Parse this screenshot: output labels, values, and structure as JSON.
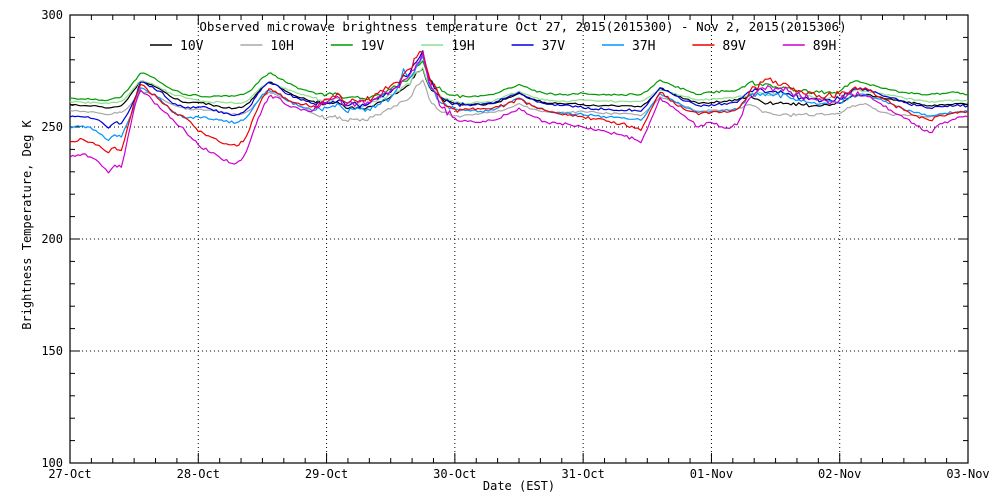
{
  "chart_data": {
    "type": "line",
    "title": "Observed microwave brightness temperature Oct 27, 2015(2015300) - Nov  2, 2015(2015306)",
    "xlabel": "Date (EST)",
    "ylabel": "Brightness Temperature, Deg K",
    "x_unit": "days since 27-Oct-2015 00:00 EST",
    "xlim": [
      0,
      7
    ],
    "ylim": [
      100,
      300
    ],
    "yticks": [
      100,
      150,
      200,
      250,
      300
    ],
    "ygrid": [
      150,
      200,
      250
    ],
    "xgrid": [
      1,
      2,
      3,
      4,
      5,
      6
    ],
    "minor_x_per_day": 6,
    "minor_y_step": 10,
    "xticks": [
      {
        "t": 0,
        "label": "27-Oct"
      },
      {
        "t": 1,
        "label": "28-Oct"
      },
      {
        "t": 2,
        "label": "29-Oct"
      },
      {
        "t": 3,
        "label": "30-Oct"
      },
      {
        "t": 4,
        "label": "31-Oct"
      },
      {
        "t": 5,
        "label": "01-Nov"
      },
      {
        "t": 6,
        "label": "02-Nov"
      },
      {
        "t": 7,
        "label": "03-Nov"
      }
    ],
    "noise_regions": [
      [
        0,
        1.9,
        0.55
      ],
      [
        1.9,
        3.05,
        1.2
      ],
      [
        3.05,
        5.25,
        0.55
      ],
      [
        5.25,
        6.15,
        1.2
      ],
      [
        6.15,
        7.01,
        0.55
      ]
    ],
    "x": [
      0,
      0.1,
      0.2,
      0.25,
      0.3,
      0.35,
      0.4,
      0.45,
      0.5,
      0.55,
      0.6,
      0.7,
      0.8,
      0.9,
      1.0,
      1.1,
      1.2,
      1.3,
      1.35,
      1.4,
      1.45,
      1.5,
      1.55,
      1.6,
      1.7,
      1.8,
      1.9,
      1.95,
      2.0,
      2.05,
      2.1,
      2.15,
      2.2,
      2.3,
      2.4,
      2.5,
      2.55,
      2.6,
      2.65,
      2.7,
      2.75,
      2.8,
      2.9,
      3.0,
      3.1,
      3.2,
      3.3,
      3.4,
      3.5,
      3.6,
      3.7,
      3.8,
      3.9,
      4.0,
      4.1,
      4.2,
      4.3,
      4.4,
      4.45,
      4.5,
      4.55,
      4.6,
      4.7,
      4.8,
      4.9,
      5.0,
      5.1,
      5.2,
      5.3,
      5.4,
      5.5,
      5.6,
      5.7,
      5.8,
      5.9,
      6.0,
      6.1,
      6.2,
      6.3,
      6.4,
      6.5,
      6.6,
      6.7,
      6.8,
      6.9,
      7.0
    ],
    "series": [
      {
        "name": "10V",
        "color": "#000000",
        "jitter": 0.7,
        "values": [
          260,
          259.5,
          259.5,
          259,
          258.5,
          259,
          259.5,
          262.5,
          266.5,
          270.5,
          269.5,
          267,
          263,
          261,
          261,
          260,
          258.5,
          258.5,
          259,
          261,
          264.5,
          268,
          270,
          269,
          265.5,
          263,
          261.5,
          261,
          260.5,
          260.5,
          260.5,
          258.5,
          259,
          258,
          261,
          263.5,
          265,
          267,
          269,
          274.5,
          276,
          268,
          262.5,
          260.5,
          260,
          260,
          260.5,
          262.5,
          265,
          262.5,
          261,
          260.5,
          260.5,
          260,
          259.5,
          259.5,
          259.5,
          259,
          259,
          261,
          264,
          267.5,
          265,
          262.5,
          260.5,
          261,
          261.5,
          262,
          264.5,
          261,
          260.5,
          260.5,
          260,
          259.5,
          260,
          260.5,
          264,
          264.5,
          263.5,
          262.5,
          261.5,
          260.5,
          259.5,
          260,
          260.5,
          260
        ]
      },
      {
        "name": "10H",
        "color": "#a8a8a8",
        "jitter": 0.7,
        "values": [
          257.5,
          257,
          256.5,
          256,
          255.5,
          256.5,
          256.5,
          258.5,
          262,
          266,
          265.5,
          263,
          260,
          258,
          258,
          257.5,
          256.5,
          255.5,
          256,
          257.5,
          260.5,
          263.5,
          265.5,
          264.5,
          261.5,
          259.5,
          256,
          254.5,
          254,
          254.5,
          254.5,
          253,
          253.5,
          253,
          255.5,
          258,
          259.5,
          261.5,
          263,
          268.5,
          271,
          262.5,
          256.5,
          255,
          255.5,
          256,
          256.5,
          258,
          260.5,
          258,
          257,
          256.5,
          256.5,
          257,
          256.5,
          256,
          256,
          255.5,
          255,
          257.5,
          260.5,
          263.5,
          261.5,
          259,
          257,
          257.5,
          257.5,
          258,
          260,
          256.5,
          255.5,
          255.5,
          255.5,
          255,
          255.5,
          256,
          259.5,
          260.5,
          257,
          255.5,
          255.5,
          255,
          254.5,
          255.5,
          256.5,
          257
        ]
      },
      {
        "name": "19V",
        "color": "#009a00",
        "jitter": 0.8,
        "values": [
          263,
          262.5,
          262.5,
          262,
          262,
          263,
          263.5,
          266.5,
          270.5,
          274,
          273.5,
          270,
          266.5,
          264.5,
          264,
          263.5,
          264,
          264,
          264.5,
          266,
          269,
          272,
          274,
          273,
          269.5,
          267,
          265.5,
          265,
          264.5,
          264.5,
          264.5,
          263,
          263.5,
          262.5,
          264.5,
          267,
          268,
          270.5,
          272,
          277,
          279.5,
          271.5,
          266,
          264,
          263.5,
          264,
          264.5,
          267,
          269,
          266.5,
          265,
          264.5,
          264.5,
          265,
          264.5,
          264.5,
          264.5,
          264.5,
          264.5,
          266,
          268.5,
          271,
          268.5,
          266.5,
          264.5,
          265.5,
          266,
          266.5,
          270,
          268.5,
          268,
          267.5,
          266,
          265.5,
          265.5,
          266,
          270,
          269.5,
          268,
          266.5,
          265.5,
          265,
          264.5,
          265,
          265.5,
          264.5
        ]
      },
      {
        "name": "19H",
        "color": "#8de08d",
        "jitter": 0.8,
        "values": [
          261.5,
          261,
          261,
          260.5,
          260.5,
          261,
          261.5,
          264,
          267.5,
          270.5,
          270,
          267.5,
          264.5,
          263,
          262,
          261,
          261,
          260.5,
          261,
          262.5,
          265.5,
          268,
          269.5,
          269,
          266.5,
          264.5,
          263,
          262,
          261.5,
          262,
          262,
          260,
          260.5,
          259.5,
          262,
          264.5,
          266,
          268,
          269,
          274.5,
          276.5,
          268.5,
          263,
          261,
          260.5,
          261,
          261.5,
          264,
          266,
          263.5,
          262,
          261.5,
          261.5,
          262,
          261.5,
          261.5,
          261.5,
          261.5,
          261.5,
          263,
          265,
          266.5,
          265,
          263.5,
          262,
          262.5,
          263,
          263.5,
          265,
          265,
          265,
          264.5,
          263.5,
          263,
          262.5,
          263,
          266,
          266,
          265,
          264,
          263,
          262,
          261,
          261.5,
          262,
          261.5
        ]
      },
      {
        "name": "37V",
        "color": "#0000d8",
        "jitter": 1.0,
        "values": [
          254.5,
          254.5,
          253.5,
          252,
          249.5,
          252,
          251.5,
          256,
          262,
          270,
          269,
          266,
          260.5,
          258.5,
          259,
          258,
          256,
          255.5,
          256.5,
          259,
          263.5,
          267.5,
          270,
          269,
          264.5,
          262,
          260.5,
          260.5,
          261,
          261.5,
          262,
          259.5,
          260.5,
          259.5,
          262.5,
          265.5,
          268,
          273,
          274,
          279,
          284,
          271,
          263,
          260.5,
          260,
          260,
          260.5,
          263,
          265.5,
          262.5,
          260.5,
          260,
          259.5,
          258.5,
          258,
          258,
          257.5,
          257.5,
          257,
          260,
          264,
          267.5,
          264.5,
          261.5,
          259.5,
          260,
          260.5,
          261,
          266,
          266.5,
          266,
          265,
          263,
          262.5,
          262,
          262.5,
          266.5,
          267,
          265,
          263,
          261,
          259.5,
          258.5,
          259,
          259.5,
          259.5
        ]
      },
      {
        "name": "37H",
        "color": "#0095ff",
        "jitter": 1.0,
        "values": [
          249.5,
          250.5,
          248.5,
          246.5,
          244,
          246.5,
          245.5,
          252,
          259,
          267.5,
          266,
          263,
          256.5,
          254,
          254.5,
          253.5,
          252.5,
          252,
          253,
          256,
          260.5,
          264.5,
          266.5,
          265.5,
          261.5,
          259,
          257.5,
          258,
          258.5,
          259.5,
          260,
          257,
          258,
          257,
          260,
          263,
          267,
          276,
          272,
          277,
          281.5,
          268.5,
          260.5,
          258,
          257.5,
          257,
          257.5,
          260,
          263,
          259.5,
          257.5,
          256.5,
          256,
          255.5,
          255,
          254.5,
          254,
          253.5,
          253,
          256.5,
          261,
          265,
          262,
          258.5,
          256.5,
          257,
          257.5,
          258,
          264,
          265,
          264.5,
          263.5,
          261.5,
          261,
          260.5,
          261,
          264.5,
          264.5,
          262.5,
          260.5,
          258,
          256.5,
          255,
          256,
          256.5,
          257
        ]
      },
      {
        "name": "89V",
        "color": "#ee0000",
        "jitter": 1.3,
        "values": [
          243.5,
          244.5,
          242,
          240.5,
          238.5,
          241,
          239.5,
          250,
          261,
          269,
          267,
          262,
          257,
          254,
          248,
          245.5,
          242.5,
          241.5,
          243.5,
          249,
          256.5,
          263,
          267,
          266,
          262,
          260,
          259.5,
          261,
          262.5,
          264,
          264.5,
          261,
          262.5,
          261.5,
          265,
          268.5,
          270,
          273.5,
          276,
          281,
          283.5,
          272.5,
          262,
          258,
          258,
          258,
          258.5,
          260,
          262.5,
          259.5,
          257.5,
          256,
          255.5,
          254.5,
          253.5,
          252.5,
          251.5,
          249.5,
          248.5,
          254,
          260,
          265.5,
          261.5,
          257.5,
          255.5,
          256.5,
          257,
          258,
          266,
          270,
          270.5,
          268.5,
          266,
          265,
          264,
          264.5,
          267,
          267.5,
          263.5,
          260.5,
          257.5,
          255,
          253,
          255,
          256.5,
          257
        ]
      },
      {
        "name": "89H",
        "color": "#cc00cc",
        "jitter": 1.4,
        "values": [
          236.5,
          238,
          235.5,
          232.5,
          229.5,
          233,
          232,
          245,
          258,
          266.5,
          264.5,
          258.5,
          253.5,
          248,
          242,
          238.5,
          235,
          234,
          236.5,
          243,
          251,
          258,
          263.5,
          263.5,
          259.5,
          257.5,
          257.5,
          259.5,
          261,
          262.5,
          263,
          259.5,
          261,
          260,
          263.5,
          266.5,
          268,
          271,
          273.5,
          278,
          283,
          270,
          258.5,
          254,
          252.5,
          252,
          253,
          255.5,
          258.5,
          255,
          252.5,
          251.5,
          251,
          250,
          248.5,
          247.5,
          246.5,
          244.5,
          243,
          249,
          256,
          263,
          259,
          254.5,
          250,
          252,
          249.5,
          251,
          263,
          267.5,
          267.5,
          266,
          263.5,
          262.5,
          261.5,
          262,
          264.5,
          264,
          261,
          257.5,
          254,
          250.5,
          247.5,
          251.5,
          253.5,
          254.5
        ]
      }
    ]
  }
}
